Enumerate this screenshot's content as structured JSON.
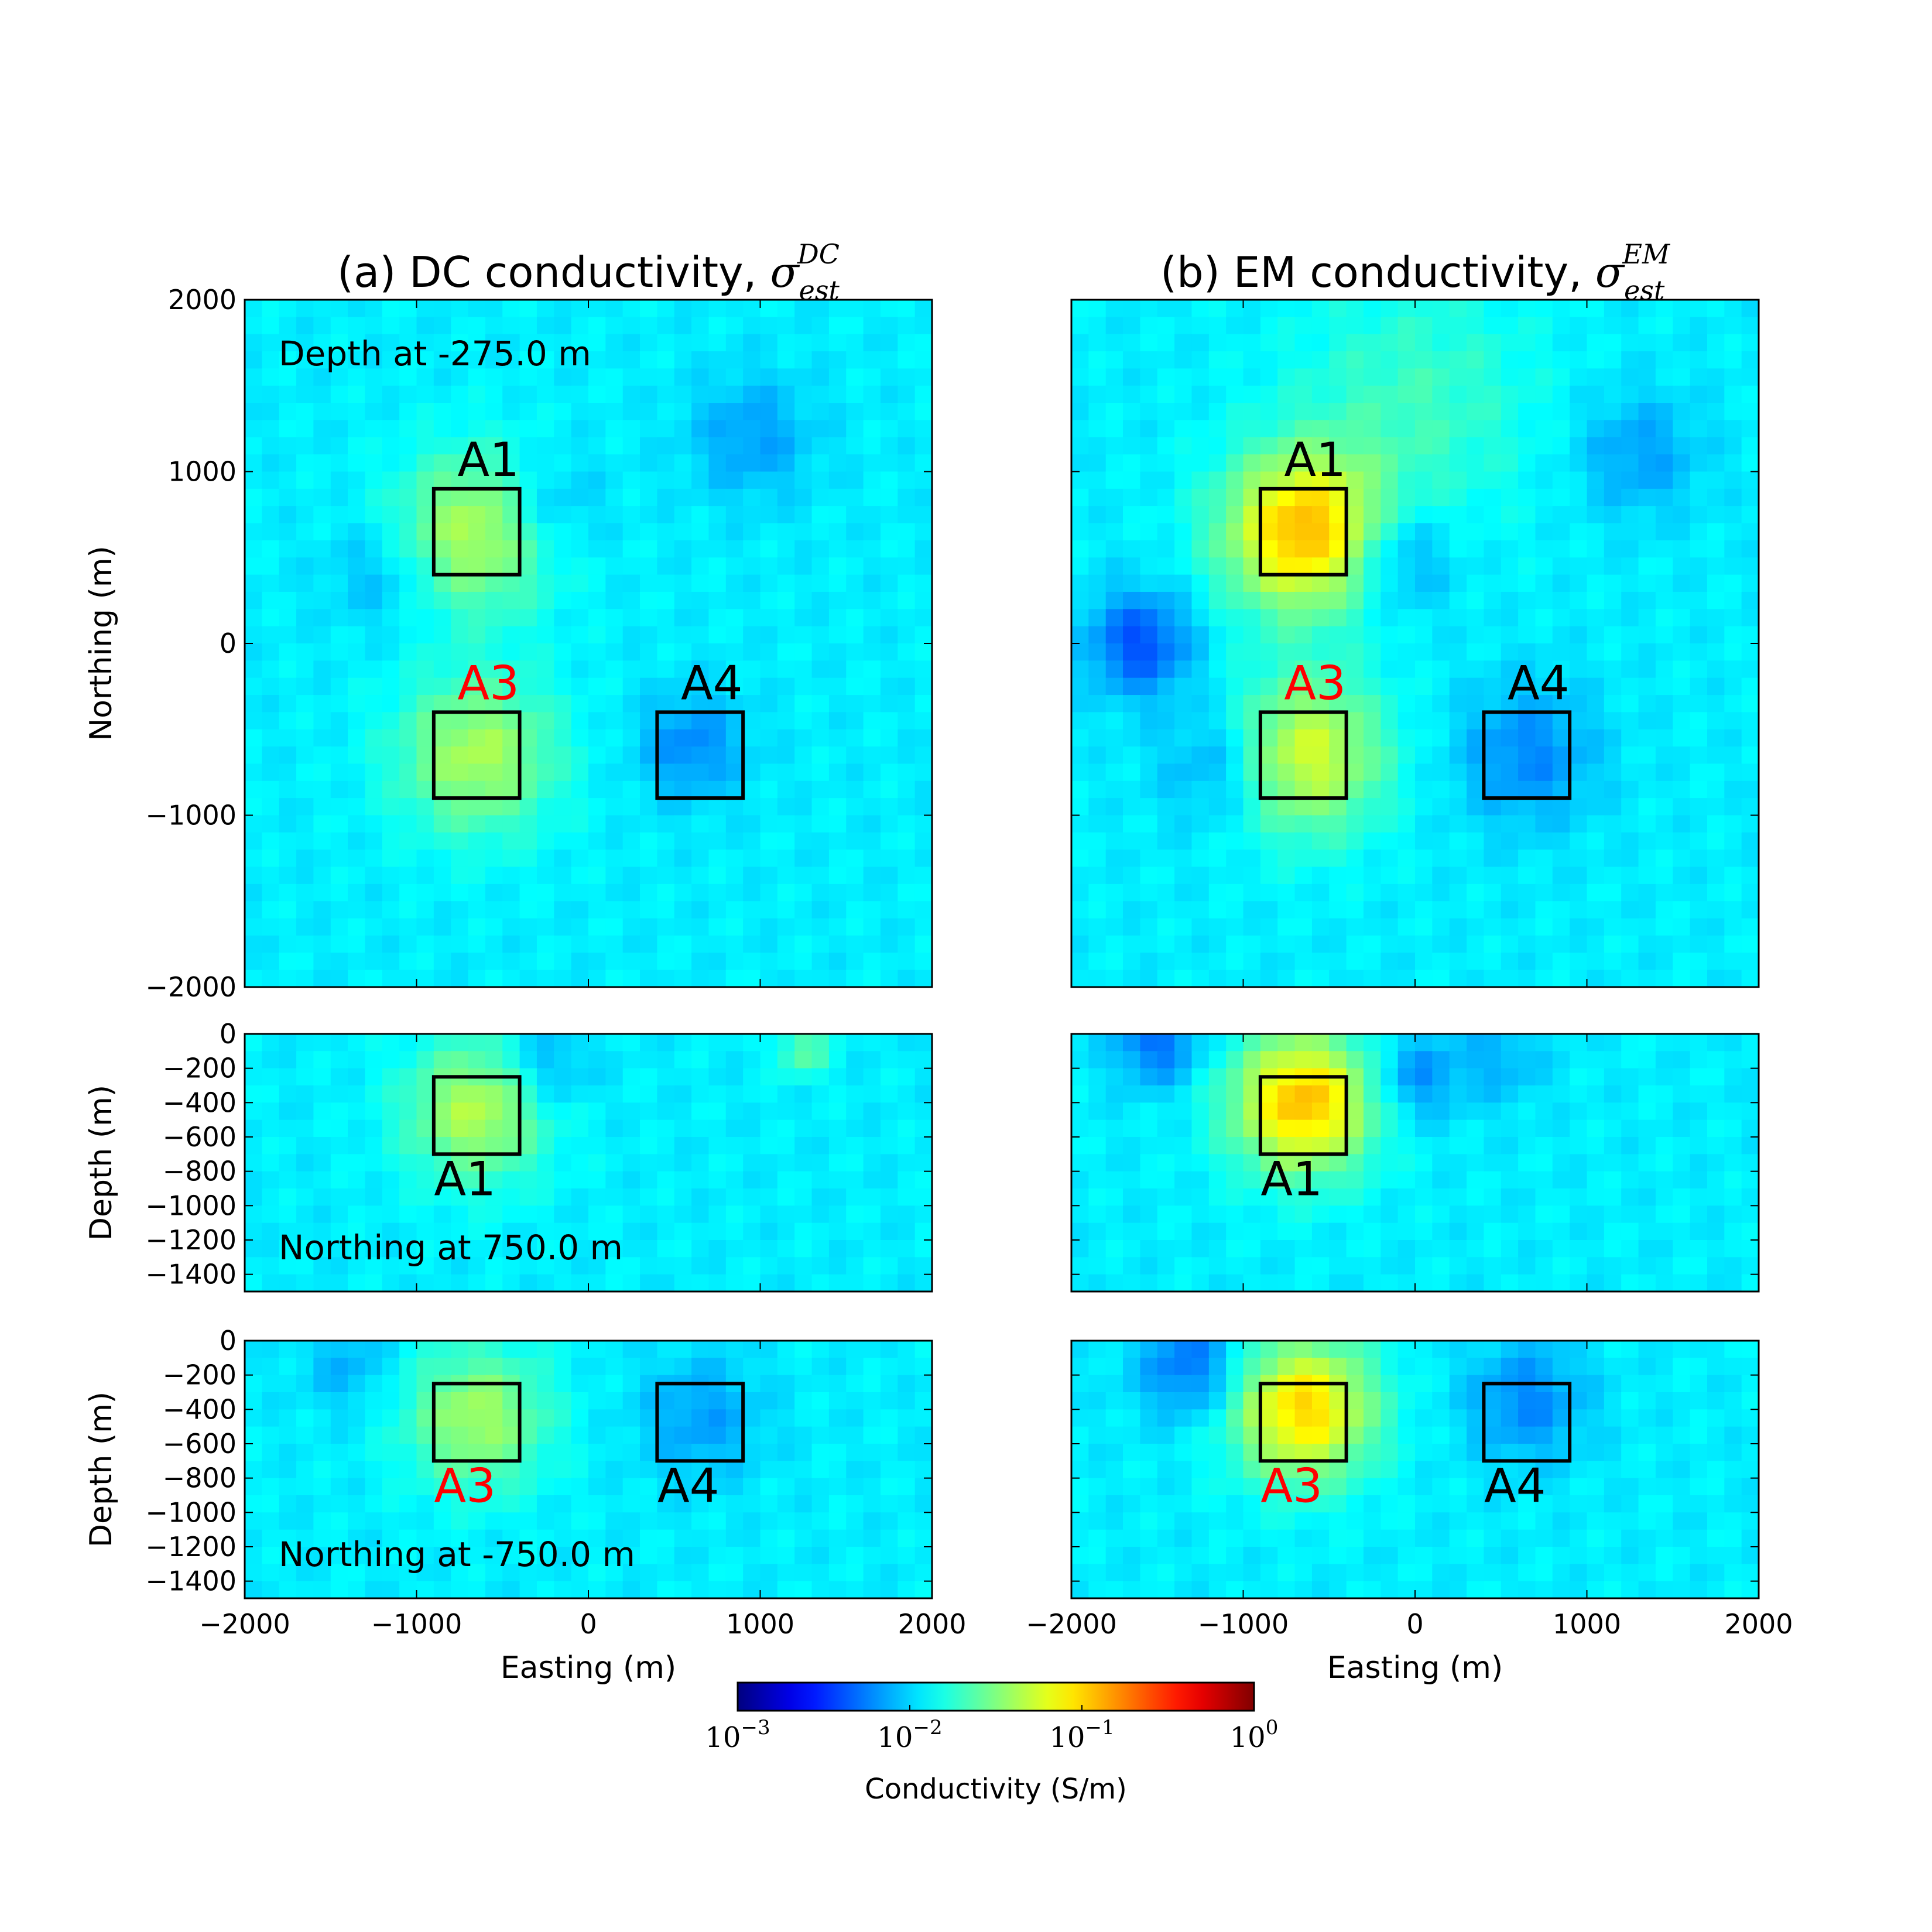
{
  "chart_data": [
    {
      "type": "heatmap",
      "panel": "a-plan",
      "title": "(a) DC conductivity, ",
      "title_symbol": "σ",
      "title_sub": "est",
      "title_sup": "DC",
      "annotation": "Depth at -275.0 m",
      "ylabel": "Northing (m)",
      "xlim": [
        -2000,
        2000
      ],
      "ylim": [
        -2000,
        2000
      ],
      "yticks": [
        "2000",
        "1000",
        "0",
        "−1000",
        "−2000"
      ],
      "xticks": [],
      "background_value": 0.012,
      "anomalies": [
        {
          "x": -650,
          "y": 650,
          "value": 0.045,
          "radius": 450
        },
        {
          "x": -650,
          "y": -650,
          "value": 0.042,
          "radius": 450
        },
        {
          "x": 600,
          "y": -600,
          "value": 0.006,
          "radius": 300
        },
        {
          "x": -250,
          "y": 800,
          "value": 0.007,
          "radius": 300
        },
        {
          "x": 950,
          "y": 1200,
          "value": 0.007,
          "radius": 350
        },
        {
          "x": -1200,
          "y": 400,
          "value": 0.008,
          "radius": 300
        }
      ],
      "boxes": [
        {
          "label": "A1",
          "label_color": "#000000",
          "x": [
            -900,
            -400
          ],
          "y": [
            400,
            900
          ],
          "label_pos": "above"
        },
        {
          "label": "A3",
          "label_color": "#ff0000",
          "x": [
            -900,
            -400
          ],
          "y": [
            -900,
            -400
          ],
          "label_pos": "above"
        },
        {
          "label": "A4",
          "label_color": "#000000",
          "x": [
            400,
            900
          ],
          "y": [
            -900,
            -400
          ],
          "label_pos": "above"
        }
      ]
    },
    {
      "type": "heatmap",
      "panel": "b-plan",
      "title": "(b) EM conductivity, ",
      "title_symbol": "σ",
      "title_sub": "est",
      "title_sup": "EM",
      "xlim": [
        -2000,
        2000
      ],
      "ylim": [
        -2000,
        2000
      ],
      "yticks": [],
      "xticks": [],
      "background_value": 0.012,
      "anomalies": [
        {
          "x": -650,
          "y": 650,
          "value": 0.12,
          "radius": 450
        },
        {
          "x": -650,
          "y": -650,
          "value": 0.06,
          "radius": 450
        },
        {
          "x": 650,
          "y": -650,
          "value": 0.006,
          "radius": 400
        },
        {
          "x": -1600,
          "y": 0,
          "value": 0.004,
          "radius": 300
        },
        {
          "x": 0,
          "y": 1400,
          "value": 0.02,
          "radius": 700
        },
        {
          "x": 1300,
          "y": 1100,
          "value": 0.007,
          "radius": 350
        },
        {
          "x": -1100,
          "y": -700,
          "value": 0.006,
          "radius": 350
        },
        {
          "x": -100,
          "y": 500,
          "value": 0.006,
          "radius": 300
        }
      ],
      "boxes": [
        {
          "label": "A1",
          "label_color": "#000000",
          "x": [
            -900,
            -400
          ],
          "y": [
            400,
            900
          ],
          "label_pos": "above"
        },
        {
          "label": "A3",
          "label_color": "#ff0000",
          "x": [
            -900,
            -400
          ],
          "y": [
            -900,
            -400
          ],
          "label_pos": "above"
        },
        {
          "label": "A4",
          "label_color": "#000000",
          "x": [
            400,
            900
          ],
          "y": [
            -900,
            -400
          ],
          "label_pos": "above"
        }
      ]
    },
    {
      "type": "heatmap",
      "panel": "a-section-1",
      "annotation": "Northing at 750.0 m",
      "ylabel": "Depth (m)",
      "xlim": [
        -2000,
        2000
      ],
      "ylim": [
        -1500,
        0
      ],
      "yticks": [
        "0",
        "−200",
        "−400",
        "−600",
        "−800",
        "−1000",
        "−1200",
        "−1400"
      ],
      "xticks": [],
      "background_value": 0.012,
      "anomalies": [
        {
          "x": -650,
          "y": -450,
          "value": 0.045,
          "radius": 400
        },
        {
          "x": -250,
          "y": -200,
          "value": 0.007,
          "radius": 250
        },
        {
          "x": 1250,
          "y": -100,
          "value": 0.025,
          "radius": 150
        }
      ],
      "boxes": [
        {
          "label": "A1",
          "label_color": "#000000",
          "x": [
            -900,
            -400
          ],
          "y": [
            -700,
            -250
          ],
          "label_pos": "below"
        }
      ]
    },
    {
      "type": "heatmap",
      "panel": "b-section-1",
      "xlim": [
        -2000,
        2000
      ],
      "ylim": [
        -1500,
        0
      ],
      "yticks": [],
      "xticks": [],
      "background_value": 0.012,
      "anomalies": [
        {
          "x": -650,
          "y": -400,
          "value": 0.12,
          "radius": 400
        },
        {
          "x": -1500,
          "y": -50,
          "value": 0.005,
          "radius": 250
        },
        {
          "x": 0,
          "y": -250,
          "value": 0.006,
          "radius": 250
        },
        {
          "x": 500,
          "y": -150,
          "value": 0.008,
          "radius": 250
        }
      ],
      "boxes": [
        {
          "label": "A1",
          "label_color": "#000000",
          "x": [
            -900,
            -400
          ],
          "y": [
            -700,
            -250
          ],
          "label_pos": "below"
        }
      ]
    },
    {
      "type": "heatmap",
      "panel": "a-section-2",
      "annotation": "Northing at -750.0 m",
      "ylabel": "Depth (m)",
      "xlim": [
        -2000,
        2000
      ],
      "ylim": [
        -1500,
        0
      ],
      "yticks": [
        "0",
        "−200",
        "−400",
        "−600",
        "−800",
        "−1000",
        "−1200",
        "−1400"
      ],
      "xticks": [
        "−2000",
        "−1000",
        "0",
        "1000",
        "2000"
      ],
      "xlabel": "Easting (m)",
      "background_value": 0.012,
      "anomalies": [
        {
          "x": -650,
          "y": -450,
          "value": 0.04,
          "radius": 400
        },
        {
          "x": 650,
          "y": -450,
          "value": 0.007,
          "radius": 350
        },
        {
          "x": -1400,
          "y": -150,
          "value": 0.008,
          "radius": 250
        }
      ],
      "boxes": [
        {
          "label": "A3",
          "label_color": "#ff0000",
          "x": [
            -900,
            -400
          ],
          "y": [
            -700,
            -250
          ],
          "label_pos": "below"
        },
        {
          "label": "A4",
          "label_color": "#000000",
          "x": [
            400,
            900
          ],
          "y": [
            -700,
            -250
          ],
          "label_pos": "below"
        }
      ]
    },
    {
      "type": "heatmap",
      "panel": "b-section-2",
      "xlim": [
        -2000,
        2000
      ],
      "ylim": [
        -1500,
        0
      ],
      "yticks": [],
      "xticks": [
        "−2000",
        "−1000",
        "0",
        "1000",
        "2000"
      ],
      "xlabel": "Easting (m)",
      "background_value": 0.012,
      "anomalies": [
        {
          "x": -650,
          "y": -400,
          "value": 0.1,
          "radius": 400
        },
        {
          "x": 650,
          "y": -350,
          "value": 0.006,
          "radius": 350
        },
        {
          "x": -1300,
          "y": -150,
          "value": 0.005,
          "radius": 300
        }
      ],
      "boxes": [
        {
          "label": "A3",
          "label_color": "#ff0000",
          "x": [
            -900,
            -400
          ],
          "y": [
            -700,
            -250
          ],
          "label_pos": "below"
        },
        {
          "label": "A4",
          "label_color": "#000000",
          "x": [
            400,
            900
          ],
          "y": [
            -700,
            -250
          ],
          "label_pos": "below"
        }
      ]
    }
  ],
  "colorbar": {
    "label": "Conductivity (S/m)",
    "scale": "log",
    "range": [
      0.001,
      1
    ],
    "colormap": "jet",
    "ticks": [
      {
        "base": "10",
        "exp": "−3"
      },
      {
        "base": "10",
        "exp": "−2"
      },
      {
        "base": "10",
        "exp": "−1"
      },
      {
        "base": "10",
        "exp": "0"
      }
    ]
  }
}
